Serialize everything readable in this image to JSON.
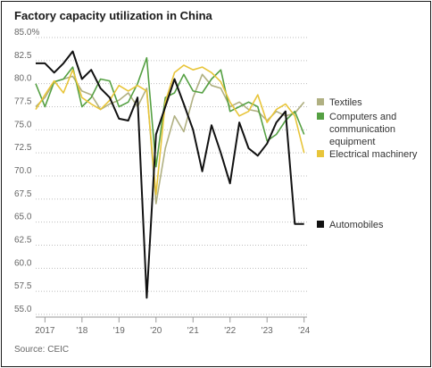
{
  "title": "Factory capacity utilization in China",
  "source": "Source: CEIC",
  "colors": {
    "axis": "#9a9a9a",
    "grid": "#bdbdbd",
    "tick_text": "#666666"
  },
  "chart_data": {
    "type": "line",
    "title": "Factory capacity utilization in China",
    "xlabel": "",
    "ylabel": "",
    "ylim": [
      55.0,
      85.0
    ],
    "y_ticks": [
      "85.0%",
      "82.5",
      "80.0",
      "77.5",
      "75.0",
      "72.5",
      "70.0",
      "67.5",
      "65.0",
      "62.5",
      "60.0",
      "57.5",
      "55.0"
    ],
    "y_tick_values": [
      85.0,
      82.5,
      80.0,
      77.5,
      75.0,
      72.5,
      70.0,
      67.5,
      65.0,
      62.5,
      60.0,
      57.5,
      55.0
    ],
    "grid": "horizontal dotted",
    "legend_placement": "right",
    "x_ticks": [
      {
        "label": "2017",
        "x": 2017.0
      },
      {
        "label": "'18",
        "x": 2018.0
      },
      {
        "label": "'19",
        "x": 2019.0
      },
      {
        "label": "'20",
        "x": 2020.0
      },
      {
        "label": "'21",
        "x": 2021.0
      },
      {
        "label": "'22",
        "x": 2022.0
      },
      {
        "label": "'23",
        "x": 2023.0
      },
      {
        "label": "'24",
        "x": 2024.0
      }
    ],
    "x": [
      2016.75,
      2017.0,
      2017.25,
      2017.5,
      2017.75,
      2018.0,
      2018.25,
      2018.5,
      2018.75,
      2019.0,
      2019.25,
      2019.5,
      2019.75,
      2020.0,
      2020.25,
      2020.5,
      2020.75,
      2021.0,
      2021.25,
      2021.5,
      2021.75,
      2022.0,
      2022.25,
      2022.5,
      2022.75,
      2023.0,
      2023.25,
      2023.5,
      2023.75,
      2024.0
    ],
    "series": [
      {
        "name": "Textiles",
        "color": "#b0b082",
        "values": [
          77.5,
          78.5,
          80.2,
          80.5,
          80.8,
          79.2,
          78.8,
          77.2,
          77.8,
          78.2,
          79.0,
          77.5,
          79.5,
          67.0,
          73.0,
          76.5,
          74.8,
          78.5,
          81.0,
          79.8,
          79.5,
          77.5,
          78.0,
          77.2,
          77.0,
          76.0,
          77.0,
          76.5,
          76.8,
          78.0
        ]
      },
      {
        "name": "Computers and communication equipment",
        "color": "#55a043",
        "values": [
          80.0,
          77.5,
          80.2,
          80.5,
          81.8,
          77.5,
          78.5,
          80.5,
          80.3,
          77.5,
          78.0,
          80.0,
          82.8,
          71.0,
          78.5,
          79.0,
          81.0,
          79.2,
          79.0,
          80.5,
          81.5,
          77.0,
          77.5,
          78.0,
          77.5,
          73.8,
          74.5,
          76.0,
          77.0,
          74.5
        ]
      },
      {
        "name": "Electrical machinery",
        "color": "#e8c53a",
        "values": [
          77.2,
          78.8,
          80.3,
          79.0,
          81.5,
          78.5,
          77.8,
          77.2,
          78.2,
          79.8,
          79.2,
          79.8,
          79.2,
          68.0,
          78.0,
          81.2,
          82.0,
          81.5,
          81.8,
          81.2,
          80.2,
          78.0,
          76.5,
          77.0,
          78.8,
          75.8,
          77.2,
          77.8,
          76.5,
          72.5
        ]
      },
      {
        "name": "Automobiles",
        "color": "#111111",
        "values": [
          82.2,
          82.2,
          81.2,
          82.2,
          83.5,
          80.5,
          81.5,
          79.5,
          78.5,
          76.2,
          76.0,
          78.5,
          56.8,
          74.5,
          77.5,
          80.5,
          77.8,
          75.0,
          70.5,
          75.5,
          72.5,
          69.2,
          75.8,
          73.0,
          72.2,
          73.5,
          75.8,
          77.0,
          64.8,
          64.8
        ]
      }
    ]
  }
}
